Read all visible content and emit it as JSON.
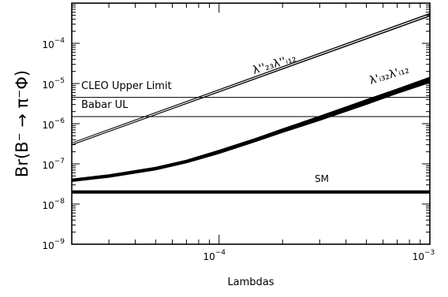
{
  "chart_data": {
    "type": "line",
    "xlabel": "Lambdas",
    "ylabel": "Br(B⁻ → π⁻Φ)",
    "x_scale": "log",
    "y_scale": "log",
    "xlim": [
      2e-05,
      0.001
    ],
    "ylim": [
      1e-09,
      0.001
    ],
    "x_ticks": [
      {
        "value": 0.0001,
        "base": "10",
        "exp": "−4"
      },
      {
        "value": 0.001,
        "base": "10",
        "exp": "−3"
      }
    ],
    "y_ticks": [
      {
        "value": 1e-09,
        "base": "10",
        "exp": "−9"
      },
      {
        "value": 1e-08,
        "base": "10",
        "exp": "−8"
      },
      {
        "value": 1e-07,
        "base": "10",
        "exp": "−7"
      },
      {
        "value": 1e-06,
        "base": "10",
        "exp": "−6"
      },
      {
        "value": 1e-05,
        "base": "10",
        "exp": "−5"
      },
      {
        "value": 0.0001,
        "base": "10",
        "exp": "−4"
      }
    ],
    "series": [
      {
        "name": "λ''₂₃λ''ᵢ₁₂",
        "style": "thin-band",
        "x": [
          2e-05,
          0.001
        ],
        "y_low": [
          3e-07,
          0.00048
        ],
        "y_high": [
          3.3e-07,
          0.00055
        ]
      },
      {
        "name": "λ'ᵢ₃₂λ'ᵢ₁₂",
        "style": "thick-band",
        "x": [
          2e-05,
          3e-05,
          5e-05,
          7e-05,
          0.0001,
          0.00015,
          0.0002,
          0.0003,
          0.0005,
          0.0007,
          0.001
        ],
        "y_low": [
          3.6e-08,
          4.6e-08,
          7e-08,
          1.05e-07,
          1.8e-07,
          3.6e-07,
          6e-07,
          1.2e-06,
          3e-06,
          5.6e-06,
          1.05e-05
        ],
        "y_high": [
          4.2e-08,
          5.4e-08,
          8.3e-08,
          1.25e-07,
          2.2e-07,
          4.4e-07,
          7.5e-07,
          1.55e-06,
          4e-06,
          7.4e-06,
          1.45e-05
        ]
      },
      {
        "name": "SM",
        "style": "thick-line",
        "x": [
          2e-05,
          0.001
        ],
        "y_low": [
          1.85e-08,
          1.85e-08
        ],
        "y_high": [
          2.15e-08,
          2.15e-08
        ]
      }
    ],
    "reference_lines": [
      {
        "name": "CLEO Upper Limit",
        "y": 4.5e-06
      },
      {
        "name": "Babar UL",
        "y": 1.5e-06
      }
    ],
    "annotations": [
      {
        "text": "SM"
      },
      {
        "text": "CLEO Upper Limit"
      },
      {
        "text": "Babar UL"
      }
    ]
  }
}
